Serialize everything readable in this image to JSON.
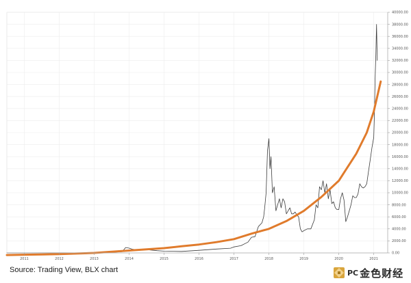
{
  "source_note": "Source: Trading View, BLX chart",
  "watermark": {
    "latin": "PC",
    "cjk": "金色财经"
  },
  "chart_data": {
    "type": "line",
    "title": "",
    "xlabel": "",
    "ylabel": "",
    "x_tick_labels": [
      "2011",
      "2012",
      "2013",
      "2014",
      "2015",
      "2016",
      "2017",
      "2018",
      "2019",
      "2020",
      "2021"
    ],
    "y_tick_labels": [
      "0.00",
      "2000.00",
      "4000.00",
      "6000.00",
      "8000.00",
      "10000.00",
      "12000.00",
      "14000.00",
      "16000.00",
      "18000.00",
      "20000.00",
      "22000.00",
      "24000.00",
      "26000.00",
      "28000.00",
      "30000.00",
      "32000.00",
      "34000.00",
      "36000.00",
      "38000.00",
      "40000.00"
    ],
    "ylim": [
      0,
      40000
    ],
    "xlim": [
      2010.5,
      2021.4
    ],
    "grid": true,
    "colors": {
      "price": "#3a3a3a",
      "trend": "#e07b2c",
      "grid": "#ececec"
    },
    "series": [
      {
        "role": "price",
        "x": [
          2010.5,
          2011.0,
          2011.5,
          2012.0,
          2012.5,
          2013.0,
          2013.3,
          2013.5,
          2013.8,
          2013.9,
          2014.0,
          2014.1,
          2014.3,
          2014.5,
          2014.8,
          2015.0,
          2015.5,
          2016.0,
          2016.5,
          2016.9,
          2017.0,
          2017.2,
          2017.4,
          2017.5,
          2017.6,
          2017.7,
          2017.8,
          2017.85,
          2017.88,
          2017.92,
          2017.96,
          2018.0,
          2018.03,
          2018.06,
          2018.1,
          2018.15,
          2018.2,
          2018.25,
          2018.3,
          2018.35,
          2018.4,
          2018.45,
          2018.5,
          2018.55,
          2018.6,
          2018.65,
          2018.7,
          2018.75,
          2018.8,
          2018.85,
          2018.9,
          2018.95,
          2019.0,
          2019.1,
          2019.2,
          2019.3,
          2019.35,
          2019.4,
          2019.45,
          2019.5,
          2019.55,
          2019.6,
          2019.65,
          2019.7,
          2019.75,
          2019.8,
          2019.85,
          2019.9,
          2019.95,
          2020.0,
          2020.05,
          2020.1,
          2020.15,
          2020.2,
          2020.25,
          2020.3,
          2020.35,
          2020.4,
          2020.45,
          2020.5,
          2020.55,
          2020.6,
          2020.65,
          2020.7,
          2020.75,
          2020.8,
          2020.85,
          2020.9,
          2020.95,
          2021.0,
          2021.02,
          2021.04,
          2021.06,
          2021.08,
          2021.1
        ],
        "y": [
          0,
          5,
          10,
          8,
          9,
          13,
          120,
          100,
          200,
          900,
          800,
          600,
          500,
          550,
          380,
          300,
          250,
          430,
          650,
          780,
          1000,
          1200,
          1800,
          2600,
          2700,
          4400,
          5000,
          6000,
          7500,
          10000,
          17000,
          19000,
          14000,
          16000,
          10000,
          11000,
          7000,
          8000,
          9000,
          7500,
          9000,
          8500,
          6500,
          7000,
          7500,
          6500,
          6500,
          6800,
          6300,
          6000,
          4000,
          3500,
          3700,
          4000,
          4000,
          5500,
          8000,
          7500,
          11000,
          10500,
          12000,
          10000,
          11500,
          9000,
          10500,
          8200,
          8500,
          7500,
          7200,
          7200,
          9000,
          10000,
          8800,
          5200,
          6000,
          7000,
          8000,
          9500,
          9200,
          9200,
          9800,
          11500,
          11000,
          10800,
          11000,
          11500,
          13500,
          15500,
          17500,
          19200,
          23000,
          29000,
          33000,
          38000,
          32000
        ]
      },
      {
        "role": "trend",
        "x": [
          2010.5,
          2011.0,
          2011.5,
          2012.0,
          2012.5,
          2013.0,
          2013.5,
          2014.0,
          2014.5,
          2015.0,
          2015.5,
          2016.0,
          2016.5,
          2017.0,
          2017.5,
          2018.0,
          2018.5,
          2019.0,
          2019.5,
          2020.0,
          2020.5,
          2020.8,
          2021.0,
          2021.2
        ],
        "y": [
          -350,
          -300,
          -260,
          -200,
          -100,
          0,
          200,
          400,
          600,
          800,
          1100,
          1400,
          1800,
          2300,
          3200,
          4000,
          5300,
          7000,
          9300,
          12000,
          16500,
          20000,
          23500,
          28500
        ]
      }
    ]
  }
}
